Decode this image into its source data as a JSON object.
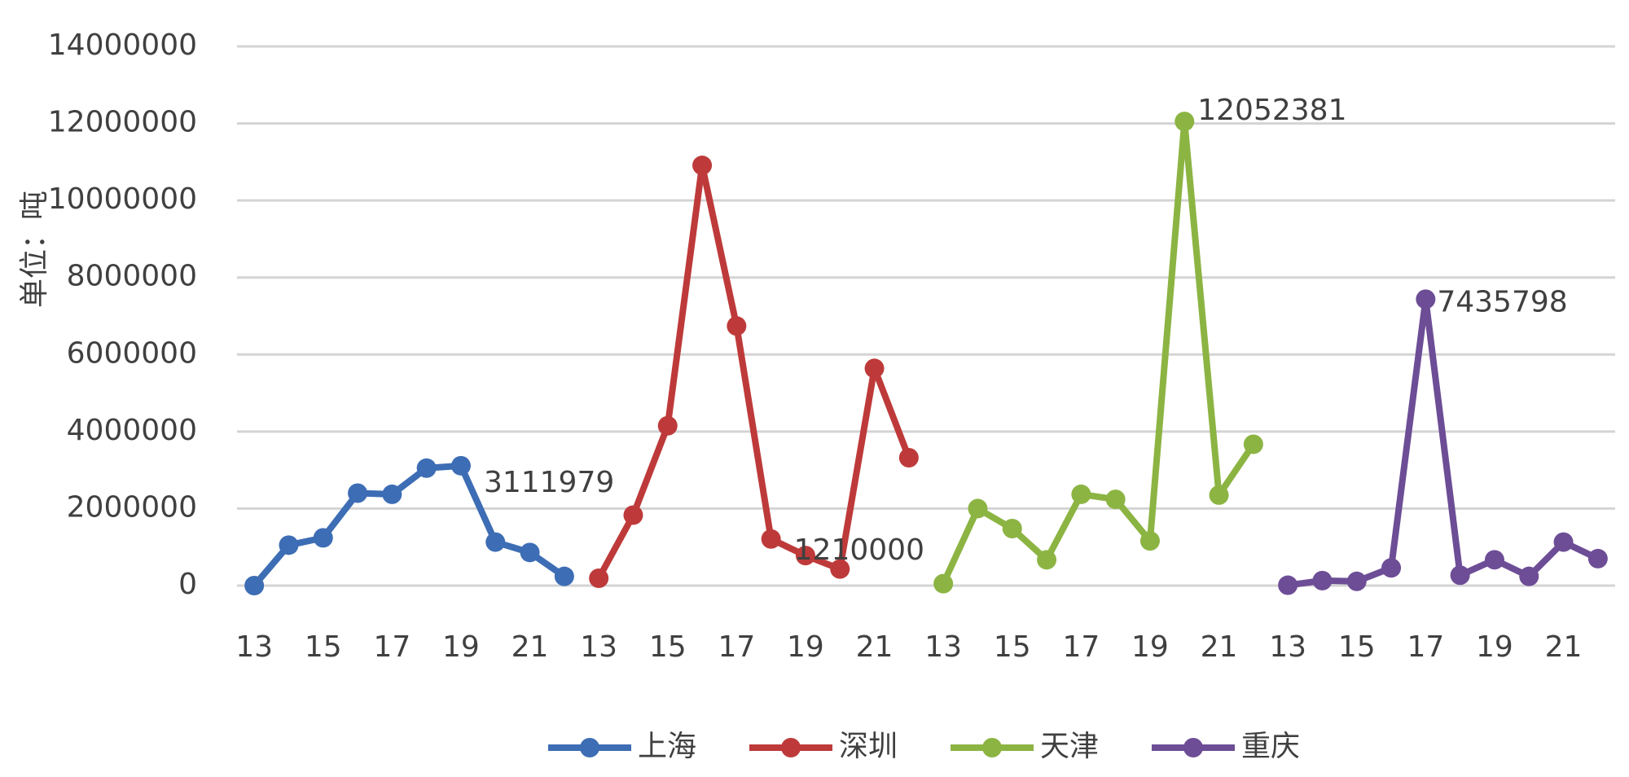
{
  "chart_data": {
    "type": "line",
    "y_label": "单位：吨",
    "categories": [
      "13",
      null,
      "15",
      null,
      "17",
      null,
      "19",
      null,
      "21",
      null,
      "13",
      null,
      "15",
      null,
      "17",
      null,
      "19",
      null,
      "21",
      null,
      "13",
      null,
      "15",
      null,
      "17",
      null,
      "19",
      null,
      "21",
      null,
      "13",
      null,
      "15",
      null,
      "17",
      null,
      "19",
      null,
      "21",
      null
    ],
    "series": [
      {
        "name": "上海",
        "color": "#3d6db4",
        "label_index": 6,
        "values": [
          0,
          1050000,
          1240000,
          2400000,
          2370000,
          3050000,
          3111979,
          1130000,
          860000,
          240000,
          null,
          null,
          null,
          null,
          null,
          null,
          null,
          null,
          null,
          null,
          null,
          null,
          null,
          null,
          null,
          null,
          null,
          null,
          null,
          null,
          null,
          null,
          null,
          null,
          null,
          null,
          null,
          null,
          null,
          null
        ]
      },
      {
        "name": "深圳",
        "color": "#be3a3a",
        "label_index": 15,
        "values": [
          null,
          null,
          null,
          null,
          null,
          null,
          null,
          null,
          null,
          null,
          190000,
          1830000,
          4150000,
          10911454,
          6740000,
          1210000,
          780000,
          430000,
          5640000,
          3320000,
          null,
          null,
          null,
          null,
          null,
          null,
          null,
          null,
          null,
          null,
          null,
          null,
          null,
          null,
          null,
          null,
          null,
          null,
          null,
          null
        ]
      },
      {
        "name": "天津",
        "color": "#8cb443",
        "label_index": 27,
        "values": [
          null,
          null,
          null,
          null,
          null,
          null,
          null,
          null,
          null,
          null,
          null,
          null,
          null,
          null,
          null,
          null,
          null,
          null,
          null,
          null,
          50000,
          2000000,
          1480000,
          670000,
          2370000,
          2240000,
          1160000,
          12052381,
          2350000,
          3670000,
          null,
          null,
          null,
          null,
          null,
          null,
          null,
          null,
          null,
          null
        ]
      },
      {
        "name": "重庆",
        "color": "#6d4d96",
        "label_index": 34,
        "values": [
          null,
          null,
          null,
          null,
          null,
          null,
          null,
          null,
          null,
          null,
          null,
          null,
          null,
          null,
          null,
          null,
          null,
          null,
          null,
          null,
          null,
          null,
          null,
          null,
          null,
          null,
          null,
          null,
          null,
          null,
          10000,
          130000,
          110000,
          460000,
          7435798,
          270000,
          670000,
          240000,
          1130000,
          700000
        ]
      }
    ],
    "ylim": [
      0,
      14000000
    ],
    "yticks": [
      0,
      2000000,
      4000000,
      6000000,
      8000000,
      10000000,
      12000000,
      14000000
    ],
    "grid": true,
    "legend": "bottom"
  }
}
